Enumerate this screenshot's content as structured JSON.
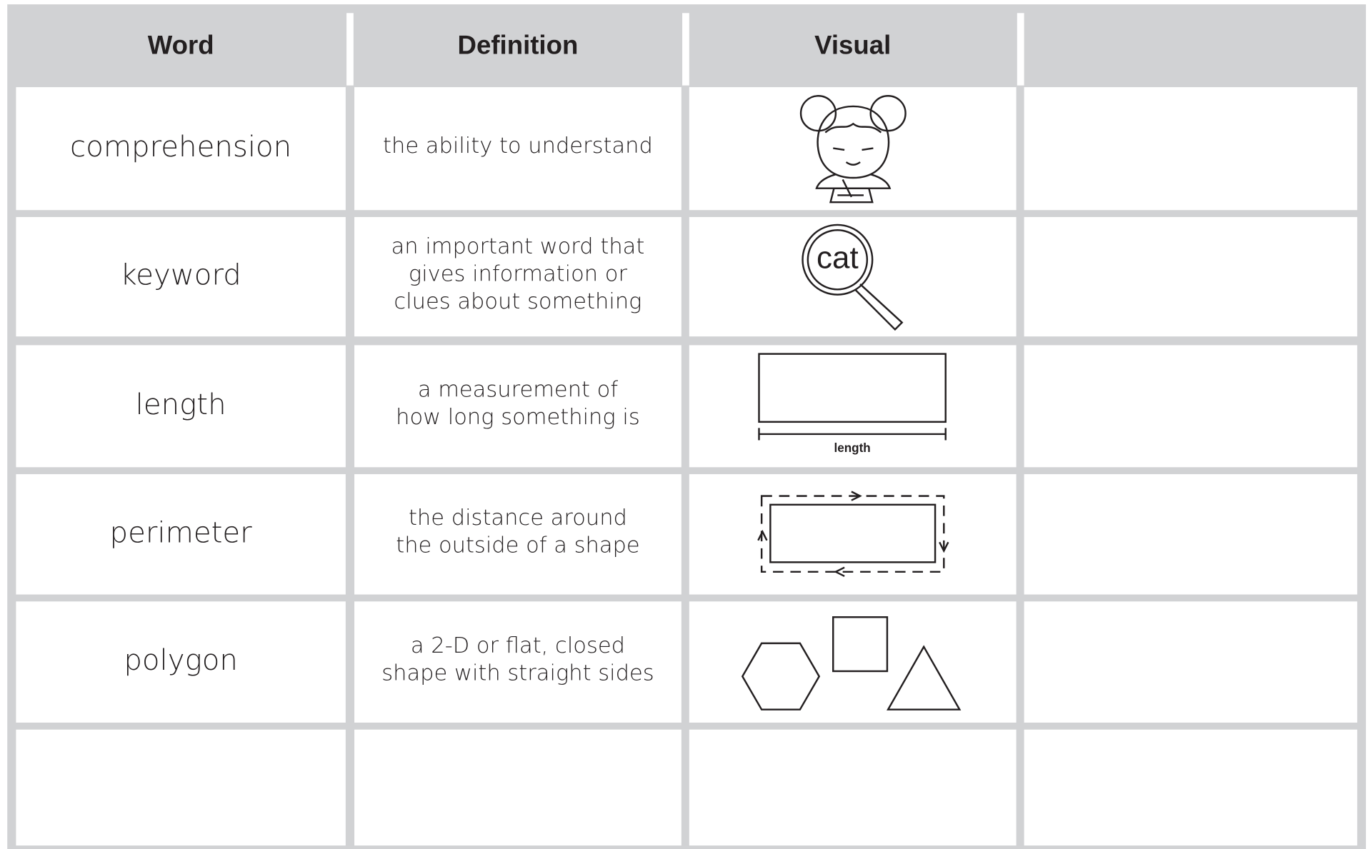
{
  "table": {
    "columns": [
      "Word",
      "Definition",
      "Visual"
    ],
    "rows": [
      {
        "word": "comprehension",
        "definition": [
          "the ability to understand"
        ]
      },
      {
        "word": "keyword",
        "definition": [
          "an important word that",
          "gives information or",
          "clues about something"
        ],
        "visual_text": "cat"
      },
      {
        "word": "length",
        "definition": [
          "a measurement of",
          "how long something is"
        ],
        "visual_text": "length"
      },
      {
        "word": "perimeter",
        "definition": [
          "the distance around",
          "the outside of a shape"
        ]
      },
      {
        "word": "polygon",
        "definition": [
          "a 2-D or flat, closed",
          "shape with straight sides"
        ]
      }
    ]
  }
}
